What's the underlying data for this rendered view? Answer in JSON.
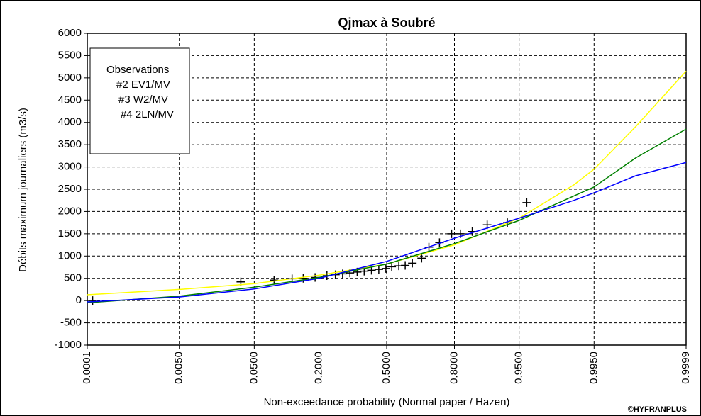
{
  "chart_data": {
    "type": "line",
    "title": "Qjmax à Soubré",
    "xlabel": "Non-exceedance probability (Normal paper / Hazen)",
    "ylabel": "Débits maximum journaliers (m3/s)",
    "credit": "©HYFRANPLUS",
    "xscale": "normal",
    "xlim": [
      0.0001,
      0.9999
    ],
    "xticks": [
      0.0001,
      {
        "value": 0.005,
        "label": "0.0050"
      },
      {
        "value": 0.05,
        "label": "0.0500"
      },
      {
        "value": 0.2,
        "label": "0.2000"
      },
      {
        "value": 0.5,
        "label": "0.5000"
      },
      {
        "value": 0.8,
        "label": "0.8000"
      },
      {
        "value": 0.95,
        "label": "0.9500"
      },
      {
        "value": 0.995,
        "label": "0.9950"
      },
      0.9999
    ],
    "ylim": [
      -1000,
      6000
    ],
    "yticks": [
      -1000,
      -500,
      0,
      500,
      1000,
      1500,
      2000,
      2500,
      3000,
      3500,
      4000,
      4500,
      5000,
      5500,
      6000
    ],
    "grid": true,
    "legend": "upper left",
    "series": [
      {
        "name": "Observations",
        "color": "#000000",
        "marker": "+",
        "x": [
          0.00013,
          0.035,
          0.081,
          0.12,
          0.15,
          0.187,
          0.229,
          0.262,
          0.292,
          0.324,
          0.357,
          0.39,
          0.425,
          0.461,
          0.496,
          0.525,
          0.56,
          0.591,
          0.625,
          0.668,
          0.7,
          0.744,
          0.79,
          0.82,
          0.856,
          0.894,
          0.933,
          0.959
        ],
        "values": [
          0,
          420,
          460,
          490,
          500,
          520,
          560,
          580,
          600,
          620,
          640,
          660,
          680,
          700,
          720,
          760,
          780,
          790,
          840,
          950,
          1200,
          1300,
          1500,
          1500,
          1550,
          1700,
          1750,
          2200
        ]
      },
      {
        "name": "#2 EV1/MV",
        "color": "#ffff00",
        "x": [
          0.0001,
          0.005,
          0.05,
          0.2,
          0.5,
          0.8,
          0.95,
          0.99,
          0.995,
          0.999,
          0.9999
        ],
        "values": [
          130,
          250,
          380,
          570,
          820,
          1250,
          1850,
          2600,
          2950,
          3900,
          5150
        ]
      },
      {
        "name": "#3 W2/MV",
        "color": "#008000",
        "x": [
          0.0001,
          0.005,
          0.05,
          0.2,
          0.5,
          0.8,
          0.95,
          0.99,
          0.995,
          0.999,
          0.9999
        ],
        "values": [
          -50,
          100,
          300,
          520,
          820,
          1280,
          1800,
          2350,
          2550,
          3200,
          3850
        ]
      },
      {
        "name": "#4 2LN/MV",
        "color": "#0000ff",
        "x": [
          0.0001,
          0.005,
          0.05,
          0.2,
          0.5,
          0.8,
          0.95,
          0.99,
          0.995,
          0.999,
          0.9999
        ],
        "values": [
          -30,
          80,
          260,
          500,
          880,
          1400,
          1850,
          2250,
          2420,
          2800,
          3100
        ]
      }
    ]
  }
}
